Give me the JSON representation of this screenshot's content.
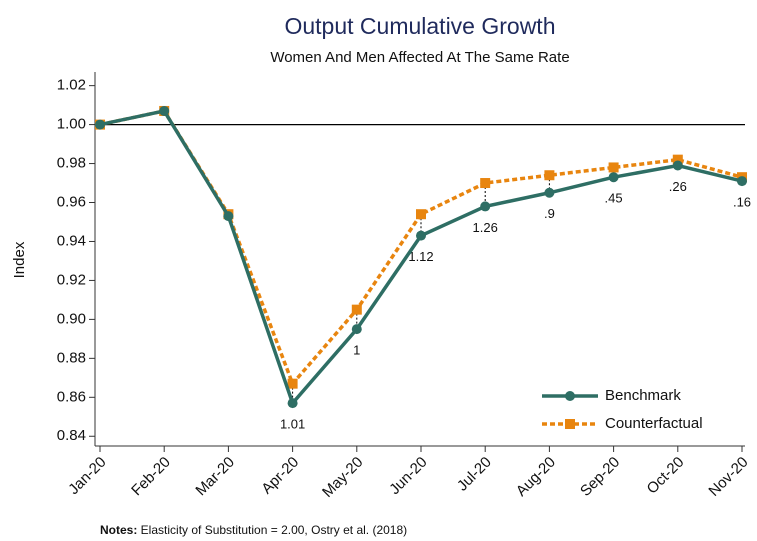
{
  "chart_data": {
    "type": "line",
    "title": "Output Cumulative Growth",
    "subtitle": "Women And Men Affected At The Same Rate",
    "y_label": "Index",
    "categories": [
      "Jan-20",
      "Feb-20",
      "Mar-20",
      "Apr-20",
      "May-20",
      "Jun-20",
      "Jul-20",
      "Aug-20",
      "Sep-20",
      "Oct-20",
      "Nov-20"
    ],
    "series": [
      {
        "name": "Benchmark",
        "color": "#2e6e64",
        "values": [
          1.0,
          1.007,
          0.953,
          0.857,
          0.895,
          0.943,
          0.958,
          0.965,
          0.973,
          0.979,
          0.971
        ]
      },
      {
        "name": "Counterfactual",
        "color": "#e8850f",
        "values": [
          1.0,
          1.007,
          0.954,
          0.867,
          0.905,
          0.954,
          0.97,
          0.974,
          0.978,
          0.982,
          0.973
        ]
      }
    ],
    "gap_labels": [
      null,
      null,
      null,
      "1.01",
      "1",
      "1.12",
      "1.26",
      ".9",
      ".45",
      ".26",
      ".16"
    ],
    "hline": 1,
    "ylim": [
      0.835,
      1.027
    ],
    "yticks": [
      1.02,
      {
        "value": 1,
        "label": "1.00"
      },
      0.98,
      0.96,
      0.94,
      0.92,
      {
        "value": 0.9,
        "label": "0.90"
      },
      0.88,
      0.86,
      0.84
    ],
    "legend": "lower right",
    "notes": {
      "label": "Notes:",
      "text": " Elasticity of Substitution = 2.00, Ostry et al. (2018)"
    }
  }
}
